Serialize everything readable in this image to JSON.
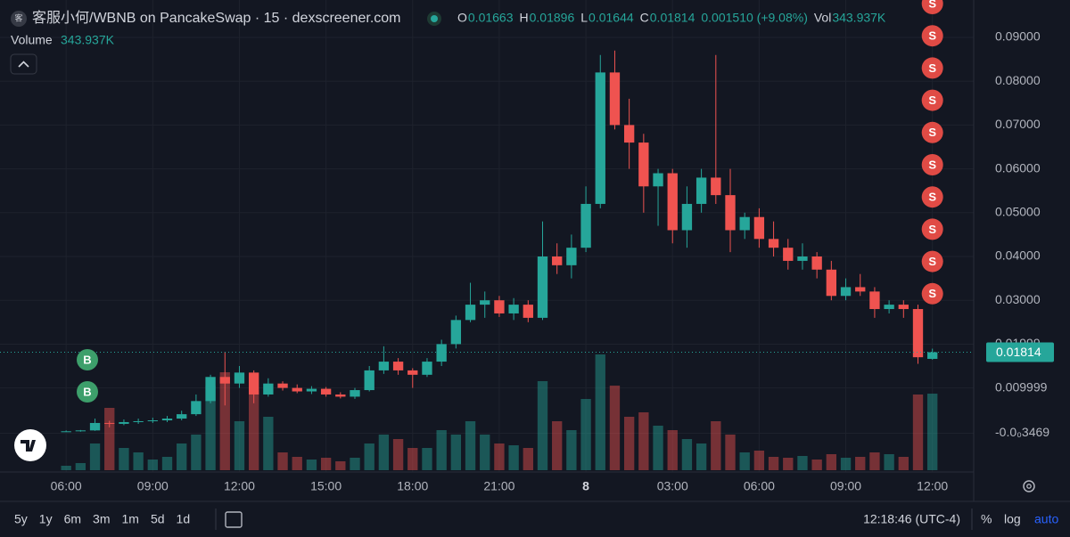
{
  "chart_data": {
    "type": "candlestick",
    "title": "客服小何/WBNB on PancakeSwap · 15 · dexscreener.com",
    "header": {
      "o_label": "O",
      "open": 0.01663,
      "h_label": "H",
      "high": 0.01896,
      "l_label": "L",
      "low": 0.01644,
      "c_label": "C",
      "close": 0.01814,
      "change": "0.001510 (+9.08%)",
      "vol_label": "Vol",
      "volume": "343.937K"
    },
    "volume_title": "Volume",
    "volume_value": "343.937K",
    "up_color": "#26a69a",
    "down_color": "#ef5350",
    "xlim": [
      3.71,
      37.43
    ],
    "xticks": [
      {
        "value": 6,
        "label": "06:00"
      },
      {
        "value": 9,
        "label": "09:00"
      },
      {
        "value": 12,
        "label": "12:00"
      },
      {
        "value": 15,
        "label": "15:00"
      },
      {
        "value": 18,
        "label": "18:00"
      },
      {
        "value": 21,
        "label": "21:00"
      },
      {
        "value": 24,
        "label": "8"
      },
      {
        "value": 27,
        "label": "03:00"
      },
      {
        "value": 30,
        "label": "06:00"
      },
      {
        "value": 33,
        "label": "09:00"
      },
      {
        "value": 36,
        "label": "12:00"
      }
    ],
    "ylim": [
      -0.00919,
      0.09854
    ],
    "yticks": [
      {
        "value": 0.09,
        "label": "0.09000"
      },
      {
        "value": 0.08,
        "label": "0.08000"
      },
      {
        "value": 0.07,
        "label": "0.07000"
      },
      {
        "value": 0.06,
        "label": "0.06000"
      },
      {
        "value": 0.05,
        "label": "0.05000"
      },
      {
        "value": 0.04,
        "label": "0.04000"
      },
      {
        "value": 0.03,
        "label": "0.03000"
      },
      {
        "value": 0.01999,
        "label": "0.01999"
      },
      0.009999,
      {
        "value": -0.0003469,
        "label": "-0.0₀3469"
      }
    ],
    "grid": true,
    "candles": [
      {
        "x": 6.0,
        "o": 0.0001,
        "h": 0.0003,
        "l": 0.0,
        "c": 0.0001,
        "v": 20
      },
      {
        "x": 6.5,
        "o": 0.0001,
        "h": 0.0004,
        "l": 0.0,
        "c": 0.0003,
        "v": 32
      },
      {
        "x": 7.0,
        "o": 0.0003,
        "h": 0.003,
        "l": 0.0002,
        "c": 0.002,
        "v": 120
      },
      {
        "x": 7.5,
        "o": 0.002,
        "h": 0.0025,
        "l": 0.001,
        "c": 0.0018,
        "v": 280
      },
      {
        "x": 8.0,
        "o": 0.0018,
        "h": 0.0028,
        "l": 0.0015,
        "c": 0.0022,
        "v": 100
      },
      {
        "x": 8.5,
        "o": 0.0022,
        "h": 0.003,
        "l": 0.0018,
        "c": 0.0024,
        "v": 80
      },
      {
        "x": 9.0,
        "o": 0.0024,
        "h": 0.0032,
        "l": 0.002,
        "c": 0.0026,
        "v": 48
      },
      {
        "x": 9.5,
        "o": 0.0026,
        "h": 0.0036,
        "l": 0.0022,
        "c": 0.003,
        "v": 60
      },
      {
        "x": 10.0,
        "o": 0.003,
        "h": 0.0048,
        "l": 0.0026,
        "c": 0.004,
        "v": 120
      },
      {
        "x": 10.5,
        "o": 0.004,
        "h": 0.0085,
        "l": 0.0036,
        "c": 0.007,
        "v": 160
      },
      {
        "x": 11.0,
        "o": 0.007,
        "h": 0.013,
        "l": 0.0065,
        "c": 0.0125,
        "v": 380
      },
      {
        "x": 11.5,
        "o": 0.0125,
        "h": 0.0182,
        "l": 0.006,
        "c": 0.011,
        "v": 440
      },
      {
        "x": 12.0,
        "o": 0.011,
        "h": 0.015,
        "l": 0.01,
        "c": 0.0135,
        "v": 220
      },
      {
        "x": 12.5,
        "o": 0.0135,
        "h": 0.014,
        "l": 0.0065,
        "c": 0.0085,
        "v": 360
      },
      {
        "x": 13.0,
        "o": 0.0085,
        "h": 0.0122,
        "l": 0.008,
        "c": 0.011,
        "v": 240
      },
      {
        "x": 13.5,
        "o": 0.011,
        "h": 0.0115,
        "l": 0.0094,
        "c": 0.01,
        "v": 80
      },
      {
        "x": 14.0,
        "o": 0.01,
        "h": 0.0108,
        "l": 0.0088,
        "c": 0.0092,
        "v": 60
      },
      {
        "x": 14.5,
        "o": 0.0092,
        "h": 0.0104,
        "l": 0.0086,
        "c": 0.0098,
        "v": 48
      },
      {
        "x": 15.0,
        "o": 0.0098,
        "h": 0.0102,
        "l": 0.008,
        "c": 0.0085,
        "v": 56
      },
      {
        "x": 15.5,
        "o": 0.0085,
        "h": 0.009,
        "l": 0.0076,
        "c": 0.008,
        "v": 40
      },
      {
        "x": 16.0,
        "o": 0.008,
        "h": 0.01,
        "l": 0.0075,
        "c": 0.0095,
        "v": 56
      },
      {
        "x": 16.5,
        "o": 0.0095,
        "h": 0.015,
        "l": 0.0092,
        "c": 0.014,
        "v": 120
      },
      {
        "x": 17.0,
        "o": 0.014,
        "h": 0.0195,
        "l": 0.0132,
        "c": 0.016,
        "v": 160
      },
      {
        "x": 17.5,
        "o": 0.016,
        "h": 0.0168,
        "l": 0.013,
        "c": 0.014,
        "v": 140
      },
      {
        "x": 18.0,
        "o": 0.014,
        "h": 0.0145,
        "l": 0.01,
        "c": 0.013,
        "v": 100
      },
      {
        "x": 18.5,
        "o": 0.013,
        "h": 0.0168,
        "l": 0.0125,
        "c": 0.016,
        "v": 100
      },
      {
        "x": 19.0,
        "o": 0.016,
        "h": 0.021,
        "l": 0.015,
        "c": 0.02,
        "v": 180
      },
      {
        "x": 19.5,
        "o": 0.02,
        "h": 0.0265,
        "l": 0.019,
        "c": 0.0255,
        "v": 160
      },
      {
        "x": 20.0,
        "o": 0.0255,
        "h": 0.034,
        "l": 0.025,
        "c": 0.029,
        "v": 220
      },
      {
        "x": 20.5,
        "o": 0.029,
        "h": 0.032,
        "l": 0.026,
        "c": 0.03,
        "v": 160
      },
      {
        "x": 21.0,
        "o": 0.03,
        "h": 0.031,
        "l": 0.0262,
        "c": 0.027,
        "v": 120
      },
      {
        "x": 21.5,
        "o": 0.027,
        "h": 0.0305,
        "l": 0.0255,
        "c": 0.029,
        "v": 112
      },
      {
        "x": 22.0,
        "o": 0.029,
        "h": 0.03,
        "l": 0.025,
        "c": 0.026,
        "v": 100
      },
      {
        "x": 22.5,
        "o": 0.026,
        "h": 0.048,
        "l": 0.0255,
        "c": 0.04,
        "v": 400
      },
      {
        "x": 23.0,
        "o": 0.04,
        "h": 0.043,
        "l": 0.036,
        "c": 0.038,
        "v": 220
      },
      {
        "x": 23.5,
        "o": 0.038,
        "h": 0.045,
        "l": 0.035,
        "c": 0.042,
        "v": 180
      },
      {
        "x": 24.0,
        "o": 0.042,
        "h": 0.056,
        "l": 0.041,
        "c": 0.052,
        "v": 320
      },
      {
        "x": 24.5,
        "o": 0.052,
        "h": 0.086,
        "l": 0.051,
        "c": 0.082,
        "v": 520
      },
      {
        "x": 25.0,
        "o": 0.082,
        "h": 0.087,
        "l": 0.069,
        "c": 0.07,
        "v": 380
      },
      {
        "x": 25.5,
        "o": 0.07,
        "h": 0.076,
        "l": 0.06,
        "c": 0.066,
        "v": 240
      },
      {
        "x": 26.0,
        "o": 0.066,
        "h": 0.068,
        "l": 0.05,
        "c": 0.056,
        "v": 260
      },
      {
        "x": 26.5,
        "o": 0.056,
        "h": 0.06,
        "l": 0.047,
        "c": 0.059,
        "v": 200
      },
      {
        "x": 27.0,
        "o": 0.059,
        "h": 0.06,
        "l": 0.043,
        "c": 0.046,
        "v": 180
      },
      {
        "x": 27.5,
        "o": 0.046,
        "h": 0.056,
        "l": 0.042,
        "c": 0.052,
        "v": 140
      },
      {
        "x": 28.0,
        "o": 0.052,
        "h": 0.06,
        "l": 0.05,
        "c": 0.058,
        "v": 120
      },
      {
        "x": 28.5,
        "o": 0.058,
        "h": 0.086,
        "l": 0.052,
        "c": 0.054,
        "v": 220
      },
      {
        "x": 29.0,
        "o": 0.054,
        "h": 0.06,
        "l": 0.041,
        "c": 0.046,
        "v": 160
      },
      {
        "x": 29.5,
        "o": 0.046,
        "h": 0.05,
        "l": 0.044,
        "c": 0.049,
        "v": 80
      },
      {
        "x": 30.0,
        "o": 0.049,
        "h": 0.051,
        "l": 0.042,
        "c": 0.044,
        "v": 88
      },
      {
        "x": 30.5,
        "o": 0.044,
        "h": 0.048,
        "l": 0.04,
        "c": 0.042,
        "v": 60
      },
      {
        "x": 31.0,
        "o": 0.042,
        "h": 0.044,
        "l": 0.037,
        "c": 0.039,
        "v": 56
      },
      {
        "x": 31.5,
        "o": 0.039,
        "h": 0.043,
        "l": 0.037,
        "c": 0.04,
        "v": 64
      },
      {
        "x": 32.0,
        "o": 0.04,
        "h": 0.041,
        "l": 0.035,
        "c": 0.037,
        "v": 48
      },
      {
        "x": 32.5,
        "o": 0.037,
        "h": 0.039,
        "l": 0.03,
        "c": 0.031,
        "v": 72
      },
      {
        "x": 33.0,
        "o": 0.031,
        "h": 0.035,
        "l": 0.03,
        "c": 0.033,
        "v": 56
      },
      {
        "x": 33.5,
        "o": 0.033,
        "h": 0.036,
        "l": 0.031,
        "c": 0.032,
        "v": 60
      },
      {
        "x": 34.0,
        "o": 0.032,
        "h": 0.033,
        "l": 0.026,
        "c": 0.028,
        "v": 80
      },
      {
        "x": 34.5,
        "o": 0.028,
        "h": 0.03,
        "l": 0.027,
        "c": 0.029,
        "v": 72
      },
      {
        "x": 35.0,
        "o": 0.029,
        "h": 0.03,
        "l": 0.026,
        "c": 0.028,
        "v": 60
      },
      {
        "x": 35.5,
        "o": 0.028,
        "h": 0.029,
        "l": 0.0155,
        "c": 0.017,
        "v": 340
      },
      {
        "x": 36.0,
        "o": 0.01663,
        "h": 0.01896,
        "l": 0.01644,
        "c": 0.01814,
        "v": 343.937
      }
    ],
    "sell_markers": [
      "S",
      "S",
      "S",
      "S",
      "S",
      "S",
      "S",
      "S",
      "S",
      "S"
    ],
    "buy_markers": [
      "B",
      "B"
    ],
    "price_label": 0.01814,
    "intervals": [
      "5y",
      "1y",
      "6m",
      "3m",
      "1m",
      "5d",
      "1d"
    ],
    "clock": "12:18:46 (UTC-4)",
    "pct": "%",
    "log": "log",
    "auto": "auto"
  }
}
